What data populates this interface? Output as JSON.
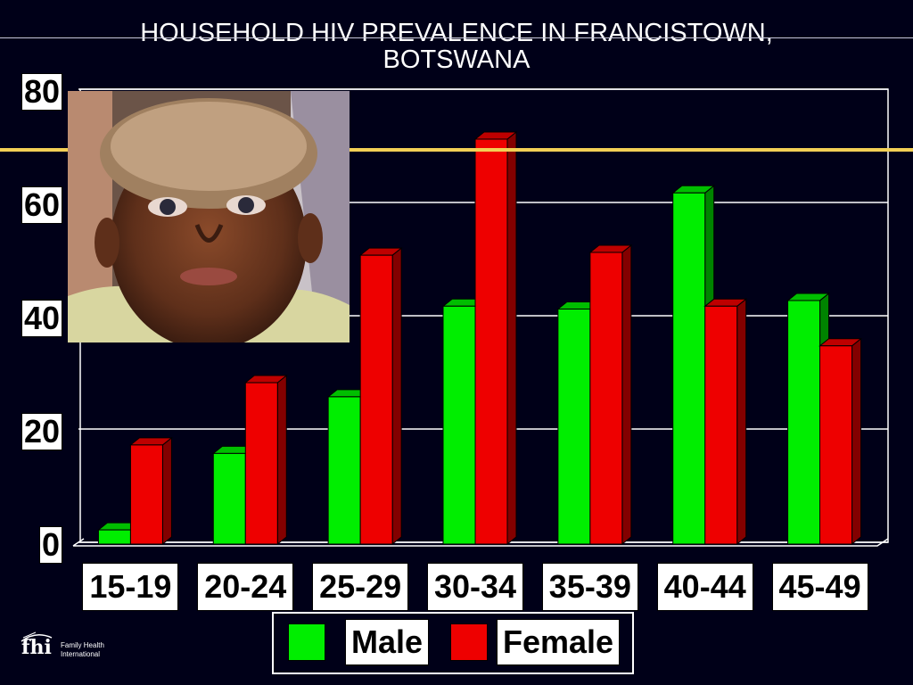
{
  "chart_data": {
    "type": "bar",
    "title": "HOUSEHOLD HIV PREVALENCE IN FRANCISTOWN, BOTSWANA",
    "title_lines": [
      "HOUSEHOLD HIV PREVALENCE IN FRANCISTOWN,",
      "BOTSWANA"
    ],
    "categories": [
      "15-19",
      "20-24",
      "25-29",
      "30-34",
      "35-39",
      "40-44",
      "45-49"
    ],
    "series": [
      {
        "name": "Male",
        "color": "#00ee00",
        "values": [
          2.5,
          16,
          26,
          42,
          41.5,
          62,
          43
        ]
      },
      {
        "name": "Female",
        "color": "#ee0000",
        "values": [
          17.5,
          28.5,
          51,
          71.5,
          51.5,
          42,
          35
        ]
      }
    ],
    "yticks": [
      "0",
      "20",
      "40",
      "60",
      "80"
    ],
    "ylim": [
      0,
      80
    ],
    "grid": true,
    "legend_position": "bottom"
  },
  "logo": {
    "mark": "fhi",
    "line1": "Family Health",
    "line2": "International"
  }
}
